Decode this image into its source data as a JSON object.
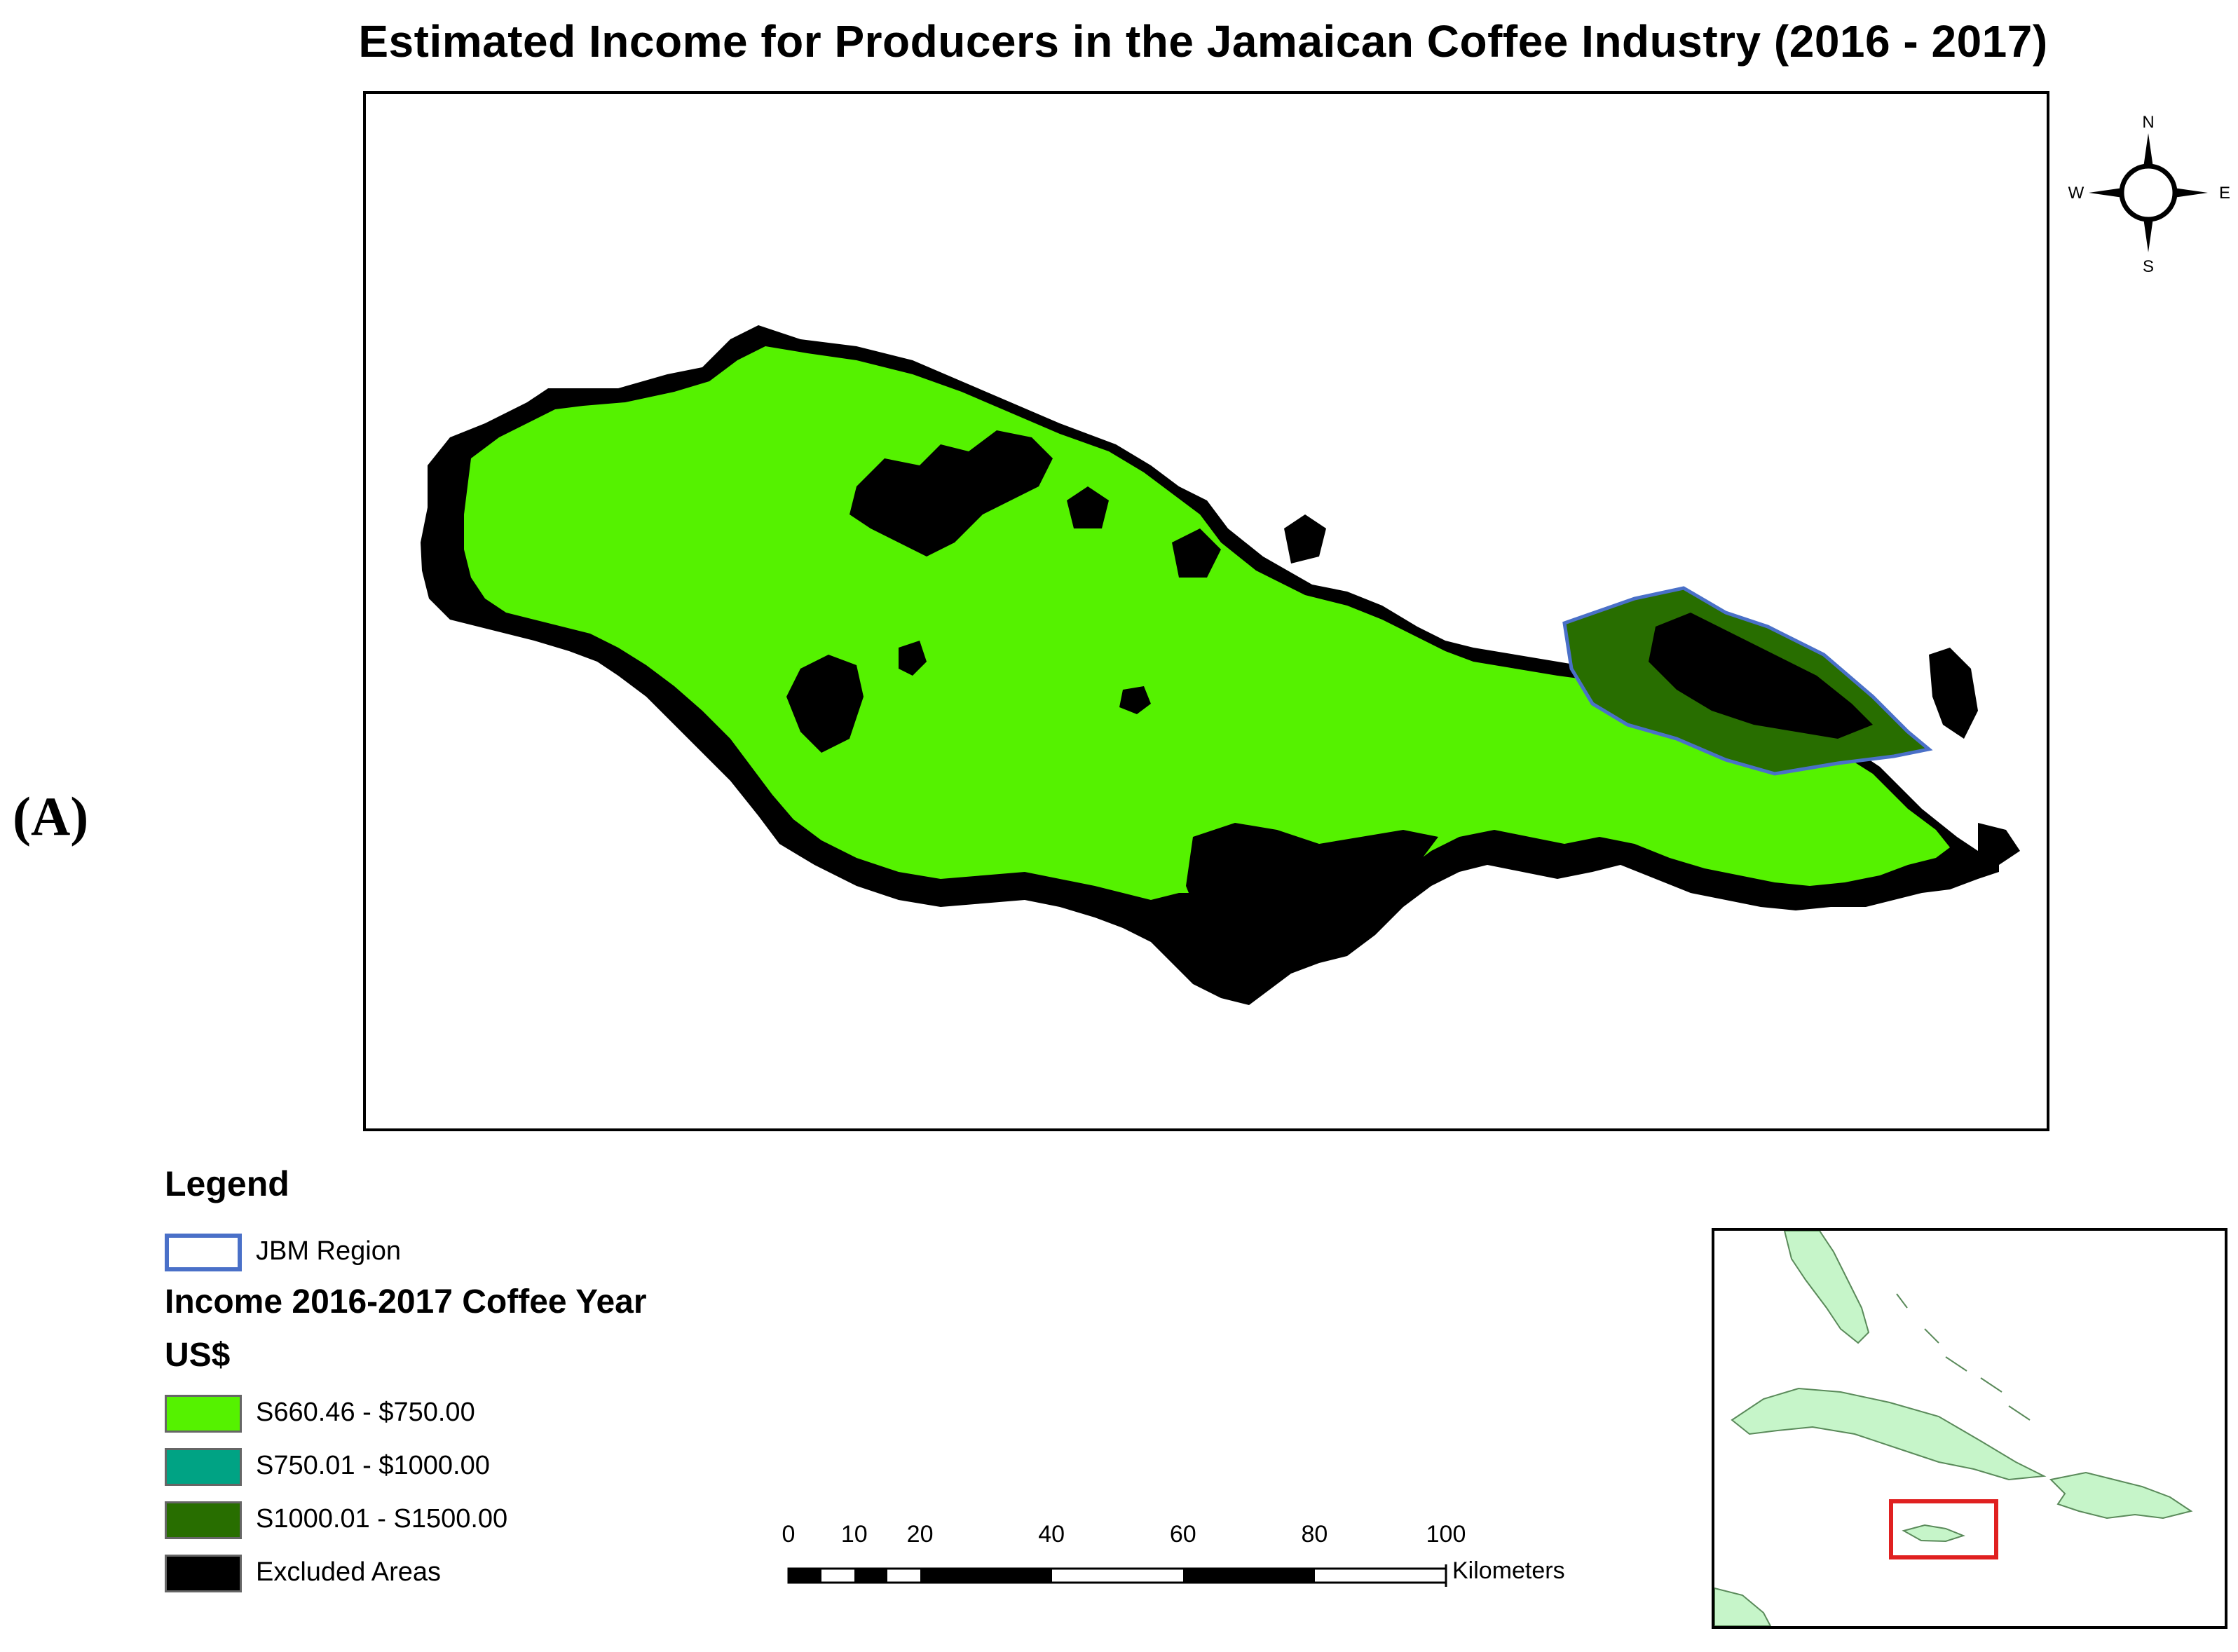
{
  "title": "Estimated Income for Producers in the Jamaican Coffee Industry (2016 - 2017)",
  "panel_label": "(A)",
  "colors": {
    "income_low": "#55f200",
    "income_mid": "#00a384",
    "income_high": "#286e00",
    "excluded": "#000000",
    "jbm_outline": "#4a70c8",
    "inset_land": "#c6f5c9",
    "inset_highlight": "#e02020"
  },
  "compass": {
    "n": "N",
    "s": "S",
    "e": "E",
    "w": "W"
  },
  "legend": {
    "title": "Legend",
    "jbm": "JBM Region",
    "income_heading": "Income 2016-2017 Coffee Year",
    "unit": "US$",
    "classes": [
      {
        "label": "S660.46 - $750.00",
        "color": "#55f200"
      },
      {
        "label": "S750.01 - $1000.00",
        "color": "#00a384"
      },
      {
        "label": "S1000.01 - S1500.00",
        "color": "#286e00"
      },
      {
        "label": "Excluded Areas",
        "color": "#000000"
      }
    ]
  },
  "scale": {
    "ticks": [
      "0",
      "10",
      "20",
      "40",
      "60",
      "80",
      "100"
    ],
    "unit": "Kilometers"
  }
}
